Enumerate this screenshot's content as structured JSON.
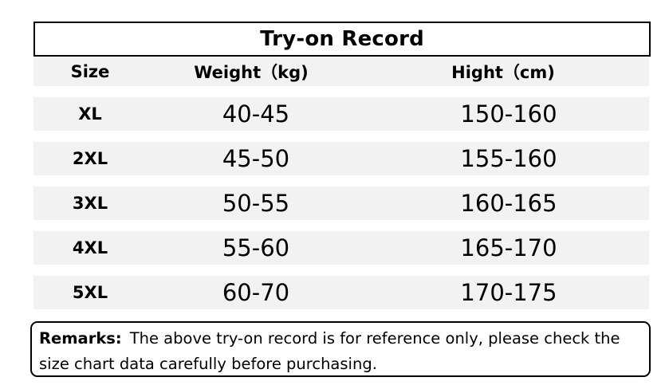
{
  "title": "Try-on Record",
  "headers": {
    "size": "Size",
    "weight": "Weight（kg)",
    "height": "Hight（cm)"
  },
  "rows": [
    {
      "size": "XL",
      "weight": "40-45",
      "height": "150-160"
    },
    {
      "size": "2XL",
      "weight": "45-50",
      "height": "155-160"
    },
    {
      "size": "3XL",
      "weight": "50-55",
      "height": "160-165"
    },
    {
      "size": "4XL",
      "weight": "55-60",
      "height": "165-170"
    },
    {
      "size": "5XL",
      "weight": "60-70",
      "height": "170-175"
    }
  ],
  "remarks": {
    "label": "Remarks:",
    "text": "The above try-on record is for reference only, please check the size chart data carefully before purchasing."
  },
  "colors": {
    "row_background": "#f2f2f2",
    "border": "#000000",
    "text": "#000000"
  }
}
